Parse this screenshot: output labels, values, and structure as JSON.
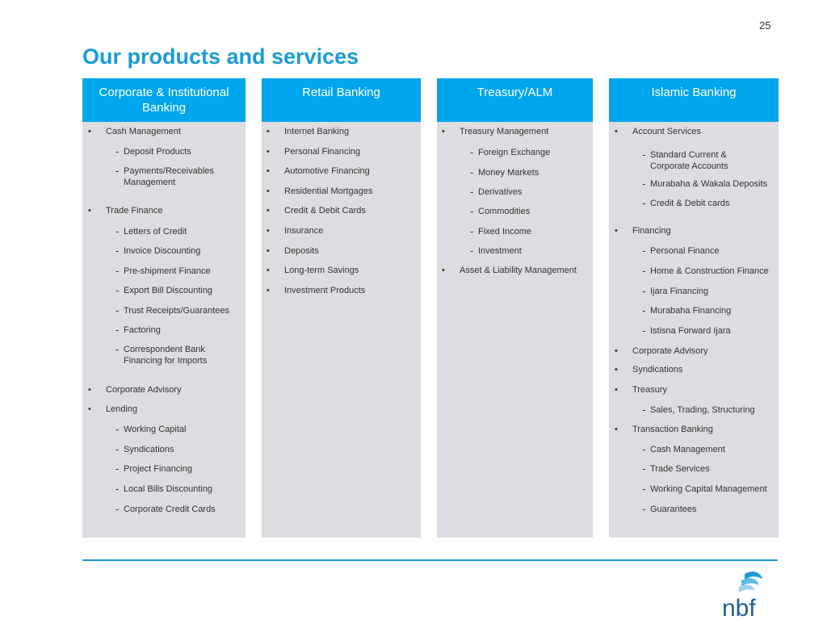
{
  "page_number": "25",
  "title": "Our products and services",
  "colors": {
    "accent": "#1a9bd7",
    "header_bg": "#00a6eb",
    "column_bg": "#dcdde0"
  },
  "columns": [
    {
      "header": "Corporate &  Institutional Banking",
      "items": [
        {
          "type": "bullet",
          "text": "Cash Management"
        },
        {
          "type": "sub",
          "text": "Deposit Products"
        },
        {
          "type": "sub",
          "text": "Payments/Receivables\nManagement"
        },
        {
          "type": "bullet",
          "text": "Trade Finance"
        },
        {
          "type": "sub",
          "text": "Letters of Credit"
        },
        {
          "type": "sub",
          "text": "Invoice Discounting"
        },
        {
          "type": "sub",
          "text": "Pre-shipment Finance"
        },
        {
          "type": "sub",
          "text": "Export Bill Discounting"
        },
        {
          "type": "sub",
          "text": "Trust Receipts/Guarantees"
        },
        {
          "type": "sub",
          "text": "Factoring"
        },
        {
          "type": "sub",
          "text": "Correspondent Bank\nFinancing for Imports"
        },
        {
          "type": "bullet",
          "text": "Corporate Advisory"
        },
        {
          "type": "bullet",
          "text": "Lending"
        },
        {
          "type": "sub",
          "text": "Working Capital"
        },
        {
          "type": "sub",
          "text": "Syndications"
        },
        {
          "type": "sub",
          "text": "Project Financing"
        },
        {
          "type": "sub",
          "text": "Local Bills Discounting"
        },
        {
          "type": "sub",
          "text": "Corporate Credit Cards"
        }
      ]
    },
    {
      "header": "Retail Banking",
      "items": [
        {
          "type": "bullet",
          "text": "Internet Banking"
        },
        {
          "type": "bullet",
          "text": "Personal Financing"
        },
        {
          "type": "bullet",
          "text": "Automotive Financing"
        },
        {
          "type": "bullet",
          "text": "Residential Mortgages"
        },
        {
          "type": "bullet",
          "text": "Credit & Debit Cards"
        },
        {
          "type": "bullet",
          "text": "Insurance"
        },
        {
          "type": "bullet",
          "text": "Deposits"
        },
        {
          "type": "bullet",
          "text": "Long-term Savings"
        },
        {
          "type": "bullet",
          "text": "Investment Products"
        }
      ]
    },
    {
      "header": "Treasury/ALM",
      "items": [
        {
          "type": "bullet",
          "text": "Treasury Management"
        },
        {
          "type": "sub",
          "text": "Foreign Exchange"
        },
        {
          "type": "sub",
          "text": "Money Markets"
        },
        {
          "type": "sub",
          "text": "Derivatives"
        },
        {
          "type": "sub",
          "text": "Commodities"
        },
        {
          "type": "sub",
          "text": "Fixed Income"
        },
        {
          "type": "sub",
          "text": "Investment"
        },
        {
          "type": "bullet",
          "text": "Asset & Liability Management"
        }
      ]
    },
    {
      "header": "Islamic Banking",
      "items": [
        {
          "type": "bullet",
          "text": "Account Services"
        },
        {
          "type": "sub",
          "text": "Standard Current &\nCorporate Accounts"
        },
        {
          "type": "sub",
          "text": "Murabaha & Wakala Deposits"
        },
        {
          "type": "sub",
          "text": "Credit & Debit cards"
        },
        {
          "type": "bullet",
          "text": "Financing"
        },
        {
          "type": "sub",
          "text": "Personal Finance"
        },
        {
          "type": "sub",
          "text": "Home & Construction Finance"
        },
        {
          "type": "sub",
          "text": "Ijara Financing"
        },
        {
          "type": "sub",
          "text": "Murabaha Financing"
        },
        {
          "type": "sub",
          "text": "Istisna Forward Ijara"
        },
        {
          "type": "bullet",
          "text": "Corporate Advisory"
        },
        {
          "type": "bullet",
          "text": "Syndications"
        },
        {
          "type": "bullet",
          "text": "Treasury"
        },
        {
          "type": "sub",
          "text": "Sales, Trading, Structuring"
        },
        {
          "type": "bullet",
          "text": "Transaction Banking"
        },
        {
          "type": "sub",
          "text": "Cash Management"
        },
        {
          "type": "sub",
          "text": "Trade Services"
        },
        {
          "type": "sub",
          "text": "Working Capital Management"
        },
        {
          "type": "sub",
          "text": "Guarantees"
        }
      ]
    }
  ],
  "logo_text": "nbf"
}
